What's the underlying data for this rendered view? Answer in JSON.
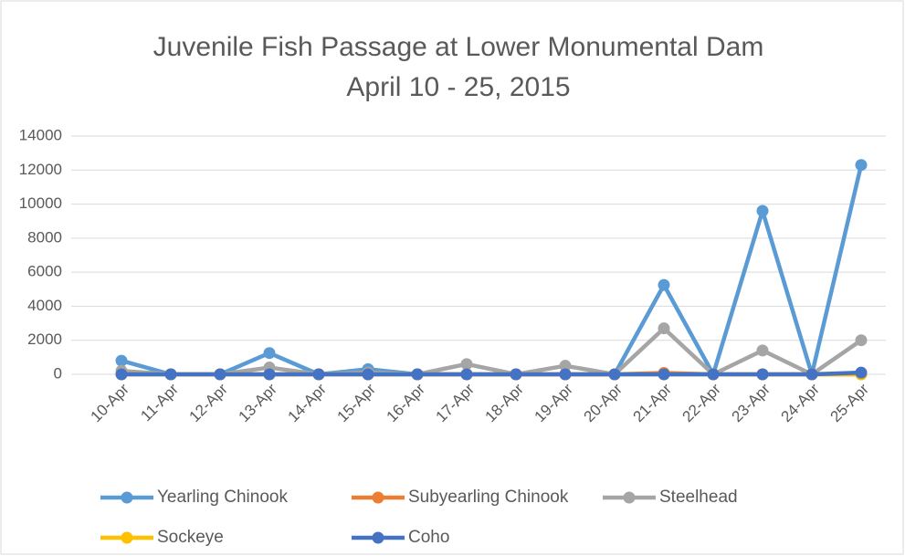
{
  "chart_data": {
    "type": "line",
    "title": [
      "Juvenile Fish Passage at Lower Monumental Dam",
      "April 10 - 25, 2015"
    ],
    "categories": [
      "10-Apr",
      "11-Apr",
      "12-Apr",
      "13-Apr",
      "14-Apr",
      "15-Apr",
      "16-Apr",
      "17-Apr",
      "18-Apr",
      "19-Apr",
      "20-Apr",
      "21-Apr",
      "22-Apr",
      "23-Apr",
      "24-Apr",
      "25-Apr"
    ],
    "series": [
      {
        "name": "Yearling Chinook",
        "color": "#5b9bd5",
        "values": [
          800,
          0,
          0,
          1250,
          0,
          300,
          0,
          0,
          0,
          0,
          0,
          5250,
          0,
          9600,
          0,
          12300
        ]
      },
      {
        "name": "Subyearling Chinook",
        "color": "#ed7d31",
        "values": [
          0,
          0,
          0,
          0,
          0,
          0,
          0,
          0,
          0,
          0,
          0,
          80,
          0,
          0,
          0,
          0
        ]
      },
      {
        "name": "Steelhead",
        "color": "#a5a5a5",
        "values": [
          200,
          0,
          0,
          400,
          0,
          100,
          0,
          600,
          0,
          500,
          0,
          2700,
          0,
          1400,
          0,
          2000
        ]
      },
      {
        "name": "Sockeye",
        "color": "#ffc000",
        "values": [
          0,
          0,
          0,
          0,
          0,
          0,
          0,
          0,
          0,
          0,
          0,
          0,
          0,
          0,
          0,
          0
        ]
      },
      {
        "name": "Coho",
        "color": "#4472c4",
        "values": [
          0,
          0,
          0,
          0,
          0,
          0,
          0,
          0,
          0,
          0,
          0,
          0,
          0,
          0,
          0,
          100
        ]
      }
    ],
    "ylim": [
      0,
      14000
    ],
    "yticks": [
      0,
      2000,
      4000,
      6000,
      8000,
      10000,
      12000,
      14000
    ],
    "grid": true,
    "legend": "bottom"
  }
}
